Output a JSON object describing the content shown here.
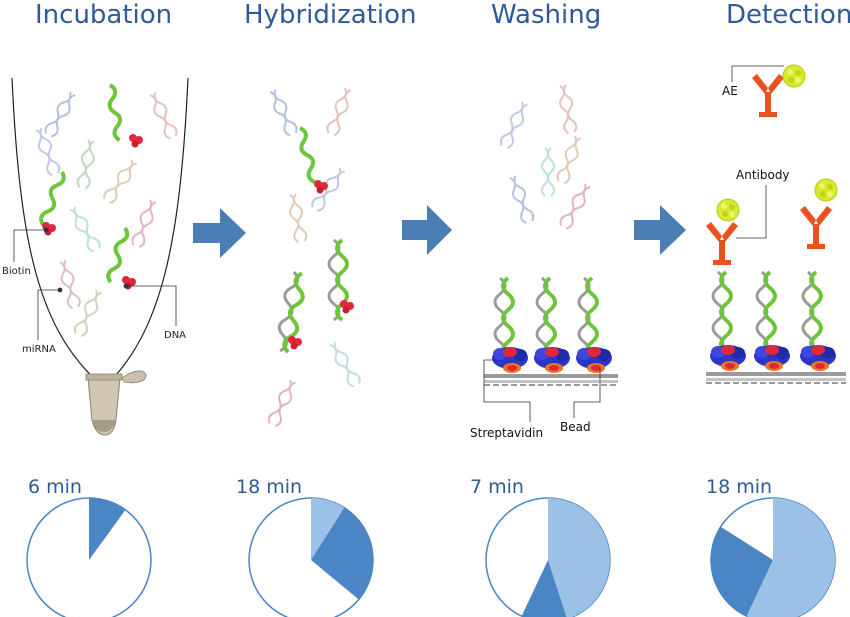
{
  "stages": [
    {
      "title": "Incubation",
      "time": "6 min",
      "pie": {
        "current": 0.1,
        "previous": 0.0
      }
    },
    {
      "title": "Hybridization",
      "time": "18 min",
      "pie": {
        "current": 0.27,
        "previous": 0.09
      }
    },
    {
      "title": "Washing",
      "time": "7 min",
      "pie": {
        "current": 0.12,
        "previous": 0.45
      }
    },
    {
      "title": "Detection",
      "time": "18 min",
      "pie": {
        "current": 0.27,
        "previous": 0.57
      }
    }
  ],
  "labels": {
    "biotin": "Biotin",
    "mirna": "miRNA",
    "dna": "DNA",
    "streptavidin": "Streptavidin",
    "bead": "Bead",
    "ae": "AE",
    "antibody": "Antibody"
  },
  "colors": {
    "title": "#2f5a9a",
    "arrow": "#4a7fb5",
    "pie_current": "#4a86c5",
    "pie_previous": "#9cc1e6",
    "pie_outline": "#4a86c5",
    "dna_green": "#6cc63a",
    "biotin_red": "#e0283c",
    "streptavidin_blue": "#2b36c8",
    "ae_yellow": "#d7ea2b",
    "antibody_orange": "#e8521e"
  }
}
